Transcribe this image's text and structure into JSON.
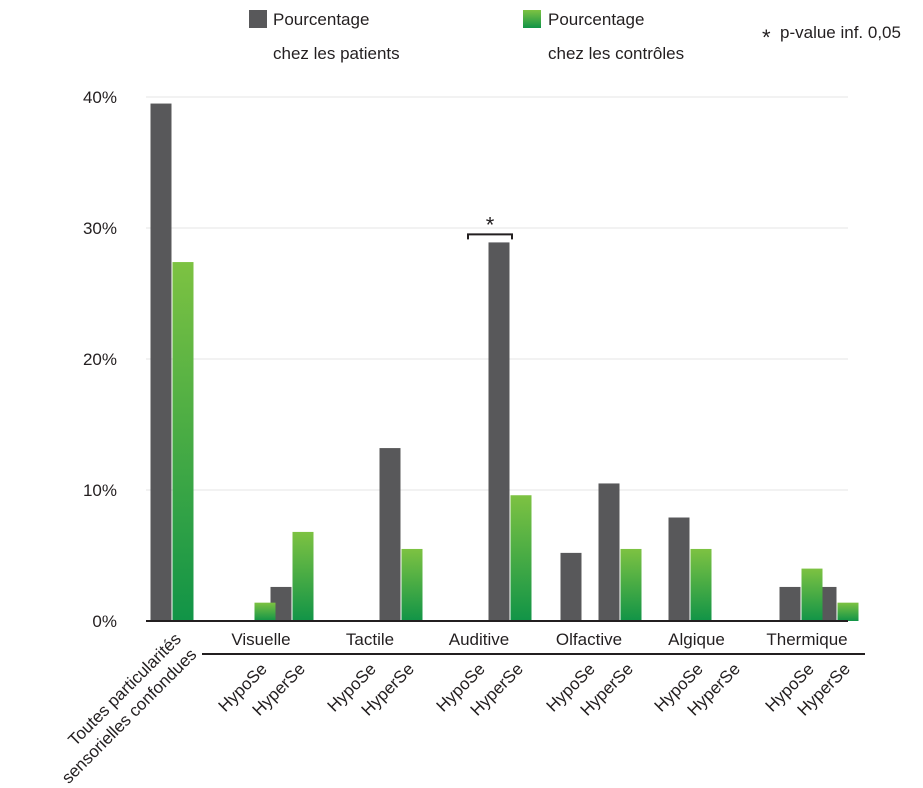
{
  "legend": {
    "patients_label_1": "Pourcentage",
    "patients_label_2": "chez les patients",
    "controls_label_1": "Pourcentage",
    "controls_label_2": "chez les contrôles",
    "significance_star": "*",
    "significance_label": "p-value inf. 0,05"
  },
  "colors": {
    "patients": "#58585a",
    "controls_top": "#7dc242",
    "controls_bottom": "#119447",
    "grid": "#e6e6e6",
    "axis": "#231f20"
  },
  "chart_data": {
    "type": "bar",
    "yticks": [
      "0%",
      "10%",
      "20%",
      "30%",
      "40%"
    ],
    "ylim": [
      0,
      40
    ],
    "grid": true,
    "legend_position": "top",
    "series": [
      {
        "name": "Pourcentage chez les patients",
        "values": [
          39.5,
          0,
          2.6,
          0,
          13.2,
          0,
          28.9,
          5.2,
          10.5,
          7.9,
          0,
          2.6,
          2.6
        ]
      },
      {
        "name": "Pourcentage chez les contrôles",
        "values": [
          27.4,
          1.4,
          6.8,
          0,
          5.5,
          0,
          9.6,
          0,
          5.5,
          5.5,
          0,
          4.0,
          1.4
        ]
      }
    ],
    "categories": [
      "Toutes particularités sensorielles confondues",
      "HypoSe",
      "HyperSe",
      "HypoSe",
      "HyperSe",
      "HypoSe",
      "HyperSe",
      "HypoSe",
      "HyperSe",
      "HypoSe",
      "HyperSe",
      "HypoSe",
      "HyperSe"
    ],
    "first_category_lines": [
      "Toutes particularités",
      "sensorielles confondues"
    ],
    "groups": [
      {
        "label": "Visuelle",
        "from": 1,
        "to": 2
      },
      {
        "label": "Tactile",
        "from": 3,
        "to": 4
      },
      {
        "label": "Auditive",
        "from": 5,
        "to": 6
      },
      {
        "label": "Olfactive",
        "from": 7,
        "to": 8
      },
      {
        "label": "Algique",
        "from": 9,
        "to": 10
      },
      {
        "label": "Thermique",
        "from": 11,
        "to": 12
      }
    ],
    "annotations": [
      {
        "text": "*",
        "category_index": 6,
        "note": "p-value inf. 0,05"
      }
    ]
  }
}
